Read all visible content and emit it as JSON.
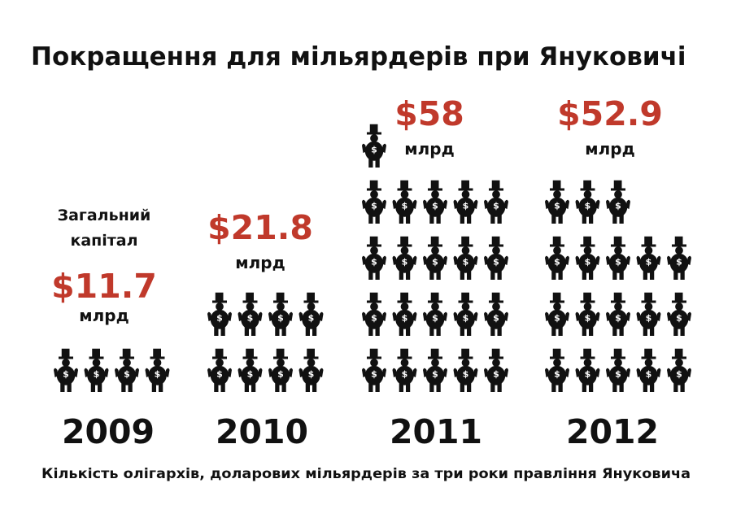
{
  "chart_data": {
    "type": "pictogram",
    "title": "Покращення для мільярдерів при Януковичі",
    "subtitle": "Кількість олігархів, доларових мільярдерів за три роки правління Януковича",
    "caption_first": [
      "Загальний",
      "капітал"
    ],
    "unit": "млрд",
    "icon": "oligarch-top-hat-dollar-icon",
    "accent_color": "#c0392b",
    "text_color": "#111111",
    "categories": [
      "2009",
      "2010",
      "2011",
      "2012"
    ],
    "series": [
      {
        "name": "billionaires_count",
        "values": [
          4,
          8,
          21,
          18
        ]
      },
      {
        "name": "total_capital",
        "values": [
          11.7,
          21.8,
          58,
          52.9
        ]
      }
    ],
    "amount_labels": [
      "$11.7",
      "$21.8",
      "$58",
      "$52.9"
    ]
  }
}
